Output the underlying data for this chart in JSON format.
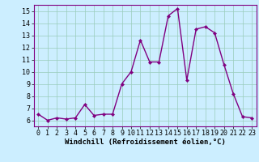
{
  "x": [
    0,
    1,
    2,
    3,
    4,
    5,
    6,
    7,
    8,
    9,
    10,
    11,
    12,
    13,
    14,
    15,
    16,
    17,
    18,
    19,
    20,
    21,
    22,
    23
  ],
  "y": [
    6.5,
    6.0,
    6.2,
    6.1,
    6.2,
    7.3,
    6.4,
    6.5,
    6.5,
    9.0,
    10.0,
    12.6,
    10.8,
    10.8,
    14.6,
    15.2,
    9.3,
    13.5,
    13.7,
    13.2,
    10.6,
    8.2,
    6.3,
    6.2
  ],
  "line_color": "#800080",
  "marker": "D",
  "marker_size": 2.2,
  "line_width": 1.0,
  "bg_color": "#cceeff",
  "grid_color": "#99ccbb",
  "xlabel": "Windchill (Refroidissement éolien,°C)",
  "xlim": [
    -0.5,
    23.5
  ],
  "ylim": [
    5.5,
    15.5
  ],
  "yticks": [
    6,
    7,
    8,
    9,
    10,
    11,
    12,
    13,
    14,
    15
  ],
  "xticks": [
    0,
    1,
    2,
    3,
    4,
    5,
    6,
    7,
    8,
    9,
    10,
    11,
    12,
    13,
    14,
    15,
    16,
    17,
    18,
    19,
    20,
    21,
    22,
    23
  ],
  "xlabel_fontsize": 6.5,
  "tick_fontsize": 6.0,
  "border_color": "#800080"
}
